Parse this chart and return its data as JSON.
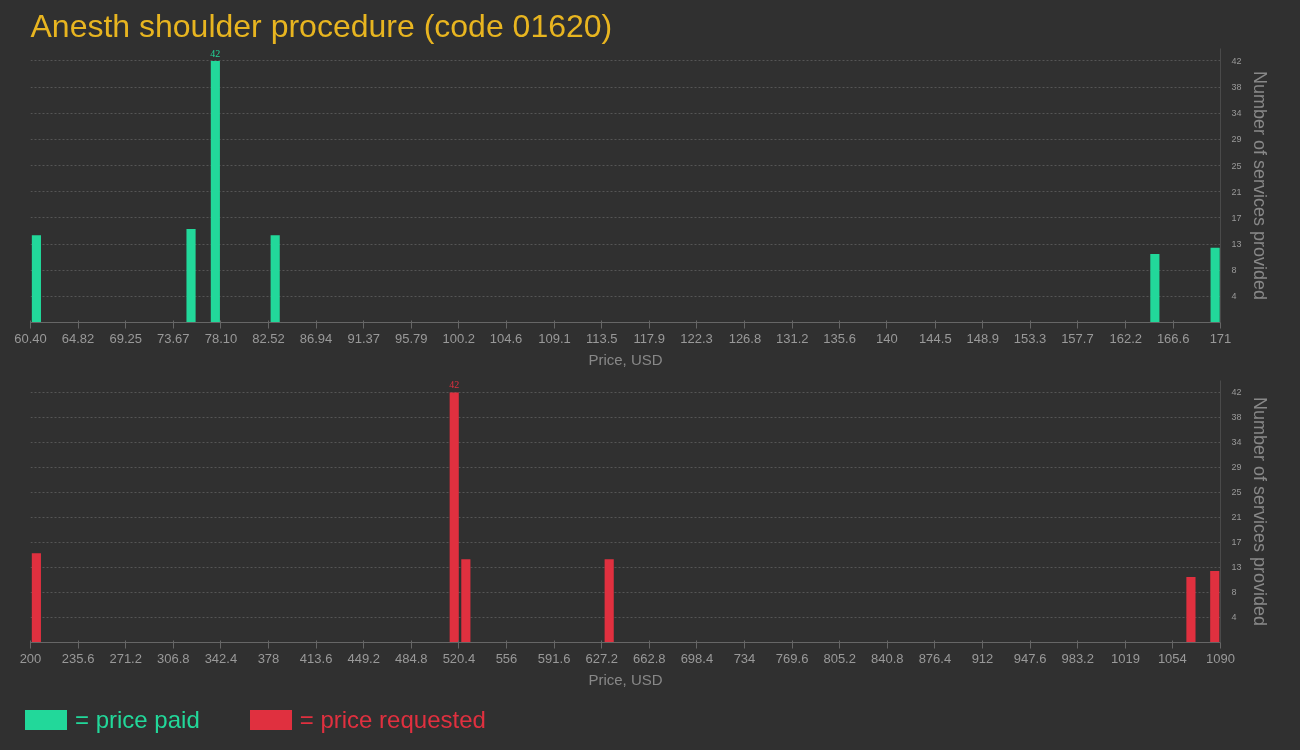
{
  "chart_data": [
    {
      "type": "bar",
      "title": "Anesth shoulder procedure (code 01620)",
      "xlabel": "Price, USD",
      "ylabel": "Number of services provided",
      "x": [
        60.95,
        75.32,
        77.58,
        83.14,
        164.9,
        170.5
      ],
      "series": [
        {
          "name": "= price paid",
          "color": "#22d89a",
          "values": [
            14,
            15,
            42,
            14,
            11,
            12
          ],
          "value_labels": [
            null,
            null,
            "42",
            null,
            null,
            null
          ]
        }
      ],
      "xlim": [
        60.4,
        171
      ],
      "ylim": [
        0,
        44
      ],
      "xticks": [
        {
          "value": 60.4,
          "label": "60.40"
        },
        64.82,
        69.25,
        73.67,
        {
          "value": 78.1,
          "label": "78.10"
        },
        82.52,
        86.94,
        91.37,
        95.79,
        100.2,
        104.6,
        109.1,
        113.5,
        117.9,
        122.3,
        126.8,
        131.2,
        135.6,
        140,
        144.5,
        148.9,
        153.3,
        157.7,
        162.2,
        166.6,
        171
      ],
      "yticks": [
        {
          "value": 4.2,
          "label": "4"
        },
        {
          "value": 8.4,
          "label": "8"
        },
        {
          "value": 12.6,
          "label": "13"
        },
        {
          "value": 16.8,
          "label": "17"
        },
        21,
        {
          "value": 25.2,
          "label": "25"
        },
        {
          "value": 29.4,
          "label": "29"
        },
        {
          "value": 33.6,
          "label": "34"
        },
        {
          "value": 37.8,
          "label": "38"
        },
        42
      ],
      "grid": "y",
      "legend": "bottom"
    },
    {
      "type": "bar",
      "xlabel": "Price, USD",
      "ylabel": "Number of services provided",
      "x": [
        204.4,
        516.9,
        525.6,
        632.8,
        1067.9,
        1085.7
      ],
      "series": [
        {
          "name": "= price requested",
          "color": "#e0303f",
          "values": [
            15,
            42,
            14,
            14,
            11,
            12
          ],
          "value_labels": [
            null,
            "42",
            null,
            null,
            null,
            null
          ]
        }
      ],
      "xlim": [
        200,
        1090
      ],
      "ylim": [
        0,
        44
      ],
      "xticks": [
        200,
        235.6,
        271.2,
        306.8,
        342.4,
        378,
        413.6,
        449.2,
        484.8,
        520.4,
        556,
        591.6,
        627.2,
        662.8,
        698.4,
        734,
        769.6,
        805.2,
        840.8,
        876.4,
        912,
        947.6,
        983.2,
        1019,
        1054,
        1090
      ],
      "yticks": [
        {
          "value": 4.2,
          "label": "4"
        },
        {
          "value": 8.4,
          "label": "8"
        },
        {
          "value": 12.6,
          "label": "13"
        },
        {
          "value": 16.8,
          "label": "17"
        },
        21,
        {
          "value": 25.2,
          "label": "25"
        },
        {
          "value": 29.4,
          "label": "29"
        },
        {
          "value": 33.6,
          "label": "34"
        },
        {
          "value": 37.8,
          "label": "38"
        },
        42
      ],
      "grid": "y",
      "legend": "bottom"
    }
  ]
}
